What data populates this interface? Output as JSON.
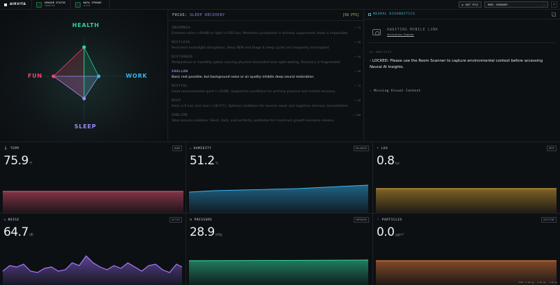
{
  "app": {
    "name": "AIRVITA"
  },
  "status_items": [
    {
      "title": "SENSOR STATUS",
      "sub": "CONNECTED"
    },
    {
      "title": "DATA STREAM",
      "sub": "ACTIVE"
    }
  ],
  "unit_pill": {
    "label": "UNIT PICO"
  },
  "mode_select": {
    "label": "MODE: HARDWARE"
  },
  "radar": {
    "labels": {
      "top": "HEALTH",
      "left": "FUN",
      "right": "WORK",
      "bottom": "SLEEP"
    },
    "colors": {
      "health": "#2fd39a",
      "fun": "#f0466e",
      "work": "#36b7e6",
      "sleep": "#9b8cf5"
    }
  },
  "focus": {
    "prefix": "FOCUS:",
    "name": "SLEEP RECOVERY",
    "points": "[58 PTS]",
    "levels": [
      {
        "name": "INSOMNIA",
        "num": "< 33",
        "desc": "Extreme noise (>60dB) or light (>150 lux). Melatonin production is actively suppressed; sleep is impossible."
      },
      {
        "name": "RESTLESS",
        "num": "< 38",
        "desc": "Persistent noise/light disruptions. Deep REM and Stage 4 sleep cycles are frequently interrupted."
      },
      {
        "name": "DISTURBED",
        "num": "< 45",
        "desc": "Temperature or humidity spikes causing physical discomfort and night-waking. Recovery is fragmented."
      },
      {
        "name": "SHALLOW",
        "num": "< 60",
        "desc": "Basic rest possible, but background noise or air quality inhibits deep neural restoration.",
        "active": true
      },
      {
        "name": "RESTFUL",
        "num": "< 75",
        "desc": "Good environmental quiet (<35dB). Supportive conditions for primary physical and mental recovery."
      },
      {
        "name": "DEEP",
        "num": "< 90",
        "desc": "Dark (<5 lux) and cool (~18.5°C). Optimal conditions for muscle repair and cognitive memory consolidation."
      },
      {
        "name": "SUBLIME",
        "num": "< 100",
        "desc": "Total sensory isolation. Silent, dark, and perfectly ventilated for maximum growth hormone release."
      }
    ]
  },
  "diagnostics": {
    "title": "NEURAL DIAGNOSTICS",
    "camera_title": "AWAITING MOBILE LINK",
    "camera_link": "Initialize Scanner",
    "ai_label": "AI ANALYSIS",
    "locked_msg": "LOCKED: Please use the Room Scanner to capture environmental context before accessing Neural AI Insights.",
    "missing": "Missing Visual Context"
  },
  "sensors": [
    {
      "key": "temp",
      "name": "TEMP",
      "icon": "thermometer-icon",
      "badge": "WARM",
      "value": "75.9",
      "unit": "°F",
      "color": "#e0506e"
    },
    {
      "key": "humidity",
      "name": "HUMIDITY",
      "icon": "droplet-icon",
      "badge": "BALANCED",
      "value": "51.2",
      "unit": "%",
      "color": "#2fa7e0"
    },
    {
      "key": "lux",
      "name": "LUX",
      "icon": "sun-icon",
      "badge": "DEEP",
      "value": "0.8",
      "unit": "lux",
      "color": "#d9a530"
    },
    {
      "key": "noise",
      "name": "NOISE",
      "icon": "speaker-icon",
      "badge": "ACTIVE",
      "value": "64.7",
      "unit": "dB",
      "color": "#9b6cf5"
    },
    {
      "key": "pressure",
      "name": "PRESSURE",
      "icon": "gauge-icon",
      "badge": "IMPROVED",
      "value": "28.9",
      "unit": "inHg",
      "color": "#2fd39a"
    },
    {
      "key": "particles",
      "name": "PARTICLES",
      "icon": "dots-icon",
      "badge": "PRISTINE",
      "value": "0.0",
      "unit": "µg/m³",
      "color": "#e0783a"
    }
  ],
  "footer": {
    "text": "PART: 0.00 µg · 2.50 µg · 1.00 µg"
  }
}
